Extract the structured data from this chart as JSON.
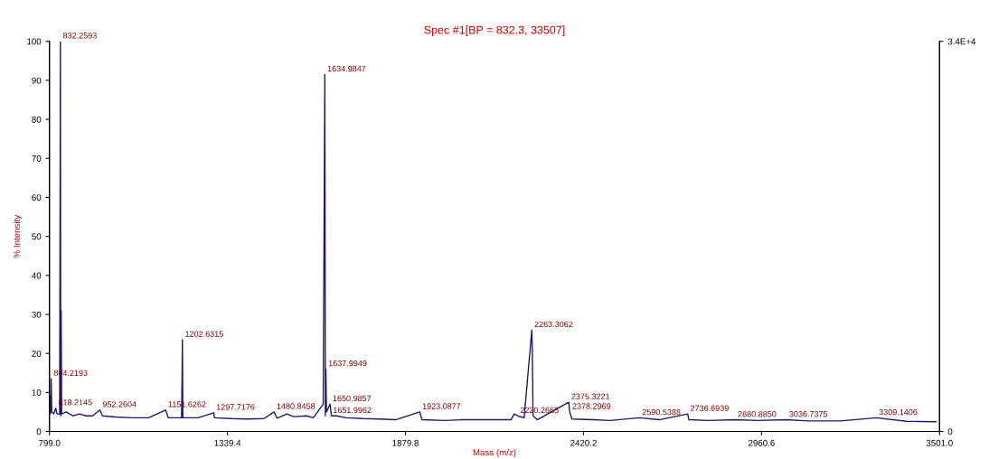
{
  "chart_data": {
    "type": "line",
    "title": "Spec #1[BP = 832.3, 33507]",
    "xlabel": "Mass (m/z)",
    "ylabel": "% Intensity",
    "x": [
      799.0,
      800,
      802,
      804.2,
      806,
      812,
      818.2,
      822,
      830,
      832.26,
      833.3,
      834.5,
      836,
      850,
      870,
      890,
      910,
      930,
      952.3,
      960,
      1000,
      1050,
      1100,
      1151.6,
      1160,
      1200,
      1201.6,
      1202.6,
      1204,
      1250,
      1297.7,
      1300,
      1350,
      1400,
      1450,
      1480.8,
      1490,
      1520,
      1540,
      1580,
      1600,
      1630,
      1634.98,
      1636.5,
      1637.99,
      1640,
      1650.99,
      1655,
      1670,
      1700,
      1750,
      1800,
      1850,
      1923.1,
      1930,
      2000,
      2050,
      2100,
      2200,
      2210,
      2220.3,
      2240,
      2263.3,
      2264.8,
      2267,
      2280,
      2375.3,
      2378.3,
      2385,
      2450,
      2500,
      2590.5,
      2650,
      2736.7,
      2740,
      2800,
      2880.9,
      2950,
      3036.7,
      3100,
      3200,
      3309.1,
      3400,
      3490
    ],
    "series": [
      {
        "color": "#1a1a6e",
        "values": [
          5,
          9,
          4.5,
          13.5,
          5,
          4.5,
          6,
          4.5,
          4.5,
          100,
          4,
          31,
          4.5,
          5,
          4,
          4.5,
          4,
          4,
          5.5,
          4,
          3.7,
          3.5,
          3.5,
          5.5,
          3.5,
          3.5,
          14,
          23.5,
          3.5,
          3.5,
          4.8,
          3.5,
          3.3,
          3.2,
          3.3,
          5,
          3.4,
          4.5,
          3.8,
          4,
          3.5,
          7,
          91.5,
          4,
          16,
          5,
          7,
          4,
          4,
          3.5,
          3.3,
          3.2,
          3,
          5,
          3,
          2.8,
          3,
          3,
          3,
          4.5,
          4,
          3.5,
          26,
          20.5,
          4,
          3,
          7.5,
          5,
          3.2,
          3,
          2.8,
          3.5,
          3,
          4.5,
          3,
          2.8,
          3,
          2.8,
          3,
          2.7,
          2.7,
          3.5,
          2.6,
          2.5
        ]
      }
    ],
    "xlim": [
      799.0,
      3501.0
    ],
    "xticks": [
      {
        "value": 799.0,
        "label": "799.0"
      },
      1339.4,
      1879.8,
      2420.2,
      2960.6,
      {
        "value": 3501.0,
        "label": "3501.0"
      }
    ],
    "ylim": [
      0,
      100
    ],
    "yticks": [
      0,
      10,
      20,
      30,
      40,
      50,
      60,
      70,
      80,
      90,
      100
    ],
    "y2lim": [
      0,
      33507
    ],
    "y2ticks": [
      0,
      {
        "value": 33507,
        "label": "3.4E+4"
      }
    ],
    "grid": false,
    "legend": false,
    "annotations": [
      {
        "text": "832.2593",
        "x": 832.26,
        "y": 100
      },
      {
        "text": "1634.9847",
        "x": 1634.98,
        "y": 91.5
      },
      {
        "text": "1202.6315",
        "x": 1202.6,
        "y": 23.5
      },
      {
        "text": "1637.9949",
        "x": 1637.99,
        "y": 16
      },
      {
        "text": "804.2193",
        "x": 804.2,
        "y": 13.5
      },
      {
        "text": "818.2145",
        "x": 818.2,
        "y": 6
      },
      {
        "text": "952.2604",
        "x": 952.3,
        "y": 5.5
      },
      {
        "text": "1151.6262",
        "x": 1151.6,
        "y": 5.5
      },
      {
        "text": "1297.7176",
        "x": 1297.7,
        "y": 4.8
      },
      {
        "text": "1480.8458",
        "x": 1480.8,
        "y": 5
      },
      {
        "text": "1650.9857",
        "x": 1650.99,
        "y": 7
      },
      {
        "text": "1651.9962",
        "x": 1651.99,
        "y": 4
      },
      {
        "text": "1923.0877",
        "x": 1923.1,
        "y": 5
      },
      {
        "text": "2220.2665",
        "x": 2220.3,
        "y": 4
      },
      {
        "text": "2263.3062",
        "x": 2263.3,
        "y": 26
      },
      {
        "text": "2375.3221",
        "x": 2375.3,
        "y": 7.5
      },
      {
        "text": "2378.2969",
        "x": 2378.3,
        "y": 5
      },
      {
        "text": "2590.5388",
        "x": 2590.5,
        "y": 3.5
      },
      {
        "text": "2736.6939",
        "x": 2736.7,
        "y": 4.5
      },
      {
        "text": "2880.8850",
        "x": 2880.9,
        "y": 3
      },
      {
        "text": "3036.7375",
        "x": 3036.7,
        "y": 3
      },
      {
        "text": "3309.1406",
        "x": 3309.1,
        "y": 3.5
      }
    ]
  }
}
